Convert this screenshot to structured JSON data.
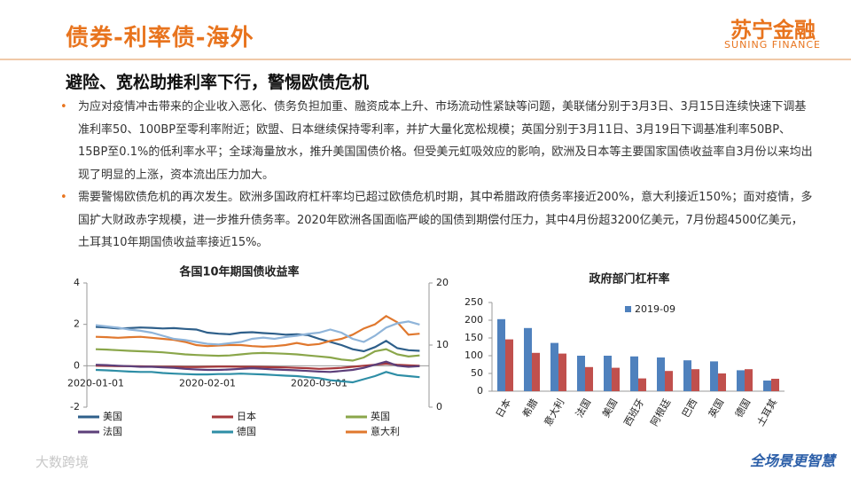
{
  "header": {
    "title": "债券-利率债-海外",
    "logo": "苏宁金融",
    "logo_sub": "SUNING FINANCE"
  },
  "subtitle": "避险、宽松助推利率下行，警惕欧债危机",
  "bullets": [
    "为应对疫情冲击带来的企业收入恶化、债务负担加重、融资成本上升、市场流动性紧缺等问题，美联储分别于3月3日、3月15日连续快速下调基准利率50、100BP至零利率附近；欧盟、日本继续保持零利率，并扩大量化宽松规模；英国分别于3月11日、3月19日下调基准利率50BP、15BP至0.1%的低利率水平；全球海量放水，推升美国国债价格。但受美元虹吸效应的影响，欧洲及日本等主要国家国债收益率自3月份以来均出现了明显的上涨，资本流出压力加大。",
    "需要警惕欧债危机的再次发生。欧洲多国政府杠杆率均已超过欧债危机时期，其中希腊政府债务率接近200%，意大利接近150%；面对疫情，多国扩大财政赤字规模，进一步推升债务率。2020年欧洲各国面临严峻的国债到期偿付压力，其中4月份超3200亿美元，7月份超4500亿美元，土耳其10年期国债收益率接近15%。"
  ],
  "footer": {
    "slogan": "全场景更智慧",
    "watermark": "大数跨境"
  },
  "chart_data": [
    {
      "type": "line",
      "title": "各国10年期国债收益率",
      "categories": [
        "2020-01-01",
        null,
        null,
        null,
        null,
        null,
        null,
        null,
        null,
        null,
        "2020-02-01",
        null,
        null,
        null,
        null,
        null,
        null,
        null,
        null,
        null,
        "2020-03-01",
        null,
        null,
        null,
        null,
        null,
        null,
        null,
        null,
        null
      ],
      "ylim": [
        -2,
        4
      ],
      "yticks": [
        -2,
        0,
        2,
        4
      ],
      "y2lim": [
        0,
        20
      ],
      "y2ticks": [
        0,
        10,
        20
      ],
      "grid": false,
      "series": [
        {
          "name": "美国",
          "color": "#2e5f8a",
          "values": [
            1.88,
            1.85,
            1.8,
            1.82,
            1.85,
            1.83,
            1.8,
            1.82,
            1.78,
            1.75,
            1.6,
            1.55,
            1.52,
            1.6,
            1.62,
            1.58,
            1.55,
            1.5,
            1.52,
            1.48,
            1.3,
            1.15,
            1.0,
            0.8,
            0.7,
            0.9,
            1.2,
            0.85,
            0.75,
            0.72
          ]
        },
        {
          "name": "日本",
          "color": "#a5373a",
          "values": [
            0.0,
            -0.01,
            -0.02,
            -0.02,
            -0.03,
            -0.04,
            -0.05,
            -0.05,
            -0.06,
            -0.06,
            -0.05,
            -0.04,
            -0.04,
            -0.05,
            -0.05,
            -0.06,
            -0.07,
            -0.08,
            -0.1,
            -0.12,
            -0.15,
            -0.13,
            -0.1,
            -0.05,
            0.0,
            0.05,
            0.1,
            0.05,
            0.02,
            0.0
          ]
        },
        {
          "name": "英国",
          "color": "#8aa64a",
          "values": [
            0.8,
            0.78,
            0.75,
            0.72,
            0.7,
            0.68,
            0.65,
            0.6,
            0.55,
            0.52,
            0.5,
            0.48,
            0.5,
            0.55,
            0.6,
            0.62,
            0.6,
            0.58,
            0.55,
            0.5,
            0.45,
            0.4,
            0.3,
            0.25,
            0.4,
            0.7,
            0.8,
            0.55,
            0.45,
            0.5
          ]
        },
        {
          "name": "法国",
          "color": "#5c3f7a",
          "values": [
            0.05,
            0.03,
            0.0,
            -0.02,
            -0.05,
            -0.05,
            -0.08,
            -0.1,
            -0.15,
            -0.18,
            -0.2,
            -0.2,
            -0.18,
            -0.15,
            -0.12,
            -0.15,
            -0.18,
            -0.2,
            -0.22,
            -0.25,
            -0.28,
            -0.3,
            -0.25,
            -0.2,
            -0.1,
            0.05,
            0.2,
            0.0,
            -0.05,
            -0.02
          ]
        },
        {
          "name": "德国",
          "color": "#2e8ea6",
          "values": [
            -0.2,
            -0.22,
            -0.25,
            -0.28,
            -0.3,
            -0.3,
            -0.35,
            -0.38,
            -0.4,
            -0.42,
            -0.42,
            -0.4,
            -0.4,
            -0.38,
            -0.4,
            -0.42,
            -0.45,
            -0.48,
            -0.5,
            -0.55,
            -0.6,
            -0.7,
            -0.75,
            -0.8,
            -0.65,
            -0.5,
            -0.3,
            -0.45,
            -0.5,
            -0.55
          ]
        },
        {
          "name": "意大利",
          "color": "#e0782e",
          "values": [
            1.4,
            1.38,
            1.35,
            1.38,
            1.4,
            1.35,
            1.3,
            1.25,
            1.15,
            1.0,
            0.95,
            0.98,
            1.0,
            1.0,
            0.95,
            0.92,
            0.95,
            1.0,
            1.1,
            1.0,
            1.05,
            1.2,
            1.3,
            1.5,
            1.8,
            2.0,
            2.4,
            2.1,
            1.5,
            1.55
          ]
        },
        {
          "color": "#8fb4d9",
          "axis": "y2",
          "values": [
            13.2,
            13,
            12.8,
            12.5,
            12.3,
            12,
            11.5,
            11,
            10.8,
            10.5,
            10.2,
            10.1,
            10.3,
            10.5,
            11,
            11.2,
            11,
            11.3,
            11.5,
            11.8,
            12,
            12.5,
            12,
            11,
            10.5,
            11.5,
            12.8,
            13.5,
            13.8,
            13.3
          ]
        }
      ]
    },
    {
      "type": "bar",
      "title": "政府部门杠杆率",
      "categories": [
        "日本",
        "希腊",
        "意大利",
        "法国",
        "美国",
        "西班牙",
        "阿根廷",
        "巴西",
        "英国",
        "德国",
        "土耳其"
      ],
      "ylim": [
        0,
        250
      ],
      "yticks": [
        0,
        50,
        100,
        150,
        200,
        250
      ],
      "grid": false,
      "series": [
        {
          "name": "2019-09",
          "color": "#4f81bd",
          "values": [
            203,
            178,
            136,
            100,
            100,
            98,
            95,
            87,
            84,
            59,
            30
          ]
        },
        {
          "color": "#c0504d",
          "values": [
            146,
            108,
            106,
            68,
            66,
            36,
            57,
            62,
            50,
            62,
            35
          ]
        }
      ]
    }
  ]
}
